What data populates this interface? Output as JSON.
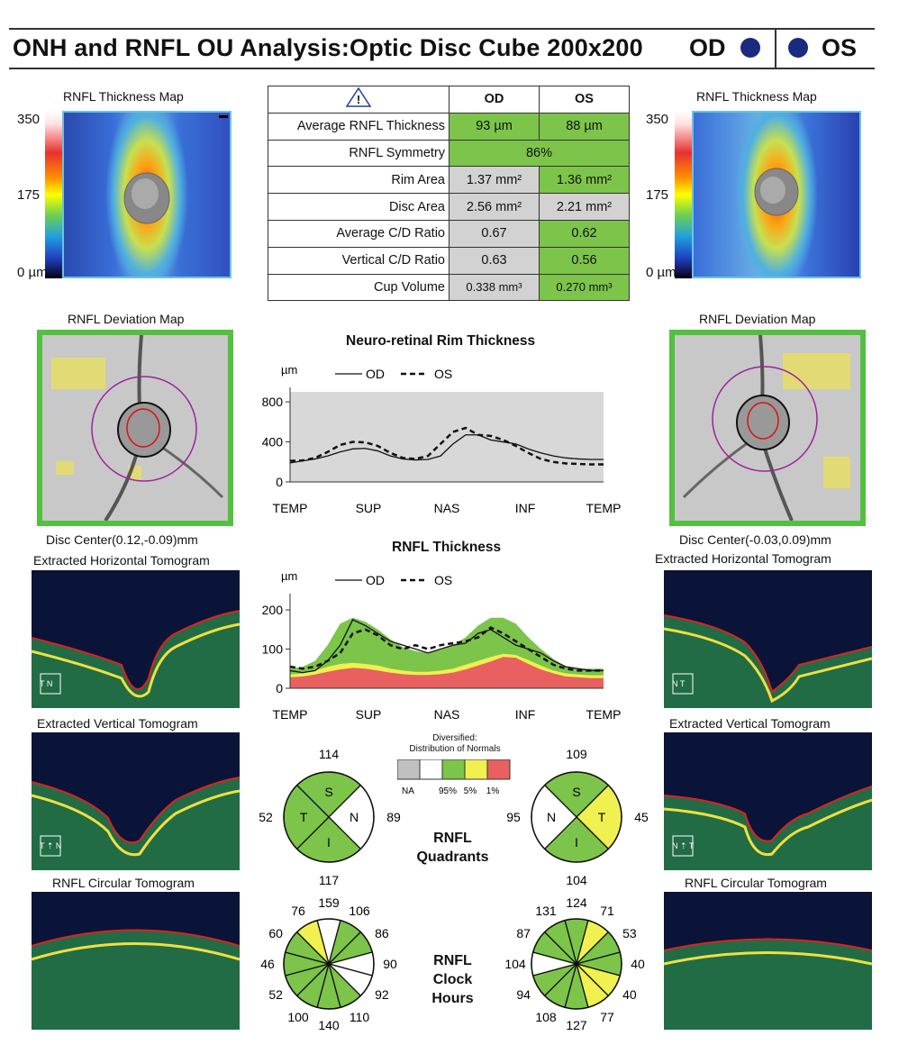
{
  "header": {
    "title": "ONH and RNFL OU Analysis:Optic Disc Cube 200x200",
    "od": "OD",
    "os": "OS"
  },
  "thickness_map": {
    "label": "RNFL Thickness Map",
    "scale_max": "350",
    "scale_mid": "175",
    "scale_min": "0 µm"
  },
  "table": {
    "warning_icon": "warning-triangle-icon",
    "col_od": "OD",
    "col_os": "OS",
    "rows": [
      {
        "label": "Average RNFL Thickness",
        "od": "93 µm",
        "os": "88 µm"
      },
      {
        "label": "RNFL Symmetry",
        "both": "86%"
      },
      {
        "label": "Rim Area",
        "od": "1.37 mm²",
        "os": "1.36 mm²"
      },
      {
        "label": "Disc Area",
        "od": "2.56 mm²",
        "os": "2.21 mm²"
      },
      {
        "label": "Average C/D Ratio",
        "od": "0.67",
        "os": "0.62"
      },
      {
        "label": "Vertical C/D Ratio",
        "od": "0.63",
        "os": "0.56"
      },
      {
        "label": "Cup Volume",
        "od": "0.338 mm³",
        "os": "0.270 mm³"
      }
    ]
  },
  "deviation": {
    "label": "RNFL Deviation Map",
    "od_center": "Disc Center(0.12,-0.09)mm",
    "os_center": "Disc Center(-0.03,0.09)mm"
  },
  "tomograms": {
    "horizontal": "Extracted Horizontal Tomogram",
    "vertical": "Extracted Vertical Tomogram",
    "circular": "RNFL Circular Tomogram",
    "od_h_tag": "T N",
    "os_h_tag": "N T"
  },
  "colors": {
    "green": "#7cc44a",
    "yellow": "#f0f050",
    "red": "#e86060",
    "gray": "#c0c0c0"
  },
  "chart_data": [
    {
      "type": "line",
      "title": "Neuro-retinal Rim Thickness",
      "ylabel": "µm",
      "ylim": [
        0,
        900
      ],
      "yticks": [
        0,
        400,
        800
      ],
      "xticks": [
        "TEMP",
        "SUP",
        "NAS",
        "INF",
        "TEMP"
      ],
      "legend": [
        "OD",
        "OS"
      ],
      "x": [
        0,
        4,
        8,
        12,
        16,
        20,
        24,
        28,
        32,
        36,
        40,
        44,
        48,
        52,
        56,
        60,
        64,
        68,
        72,
        76,
        80,
        84,
        88,
        92,
        96,
        100
      ],
      "series": [
        {
          "name": "OD",
          "values": [
            190,
            210,
            230,
            260,
            300,
            330,
            335,
            310,
            260,
            230,
            220,
            225,
            260,
            380,
            470,
            470,
            420,
            400,
            380,
            330,
            290,
            260,
            240,
            230,
            225,
            225
          ]
        },
        {
          "name": "OS",
          "values": [
            210,
            215,
            240,
            300,
            370,
            400,
            395,
            360,
            290,
            240,
            230,
            260,
            380,
            500,
            540,
            470,
            460,
            420,
            360,
            290,
            230,
            200,
            185,
            180,
            175,
            175
          ]
        }
      ]
    },
    {
      "type": "line",
      "title": "RNFL Thickness",
      "ylabel": "µm",
      "ylim": [
        0,
        230
      ],
      "yticks": [
        0,
        100,
        200
      ],
      "xticks": [
        "TEMP",
        "SUP",
        "NAS",
        "INF",
        "TEMP"
      ],
      "legend": [
        "OD",
        "OS"
      ],
      "x": [
        0,
        4,
        8,
        12,
        16,
        20,
        24,
        28,
        32,
        36,
        40,
        44,
        48,
        52,
        56,
        60,
        64,
        68,
        72,
        76,
        80,
        84,
        88,
        92,
        96,
        100
      ],
      "normal_green_upper": [
        50,
        55,
        70,
        110,
        165,
        180,
        170,
        150,
        125,
        105,
        95,
        90,
        98,
        110,
        130,
        160,
        180,
        180,
        165,
        130,
        100,
        75,
        55,
        50,
        50,
        50
      ],
      "normal_yellow_upper": [
        35,
        38,
        45,
        55,
        62,
        65,
        62,
        58,
        50,
        45,
        42,
        42,
        45,
        50,
        60,
        70,
        80,
        88,
        85,
        72,
        58,
        45,
        38,
        35,
        33,
        33
      ],
      "normal_red_upper": [
        28,
        30,
        35,
        42,
        48,
        52,
        50,
        45,
        40,
        36,
        34,
        34,
        36,
        40,
        48,
        58,
        68,
        80,
        78,
        62,
        48,
        38,
        30,
        28,
        26,
        26
      ],
      "series": [
        {
          "name": "OD",
          "values": [
            45,
            40,
            45,
            70,
            110,
            175,
            160,
            140,
            120,
            110,
            100,
            90,
            100,
            110,
            115,
            140,
            150,
            130,
            110,
            100,
            90,
            70,
            55,
            50,
            45,
            45
          ]
        },
        {
          "name": "OS",
          "values": [
            55,
            50,
            55,
            70,
            90,
            140,
            150,
            135,
            110,
            100,
            110,
            100,
            110,
            115,
            120,
            130,
            155,
            140,
            120,
            100,
            80,
            60,
            50,
            45,
            45,
            45
          ]
        }
      ]
    },
    {
      "type": "pie",
      "title": "RNFL Quadrants",
      "eye": "OD",
      "segments": [
        {
          "label": "S",
          "value": 114,
          "status": "green"
        },
        {
          "label": "N",
          "value": 89,
          "status": "white"
        },
        {
          "label": "I",
          "value": 117,
          "status": "green"
        },
        {
          "label": "T",
          "value": 52,
          "status": "green"
        }
      ]
    },
    {
      "type": "pie",
      "title": "RNFL Quadrants",
      "eye": "OS",
      "segments": [
        {
          "label": "S",
          "value": 109,
          "status": "green"
        },
        {
          "label": "T",
          "value": 45,
          "status": "yellow"
        },
        {
          "label": "I",
          "value": 104,
          "status": "green"
        },
        {
          "label": "N",
          "value": 95,
          "status": "white"
        }
      ]
    },
    {
      "type": "pie",
      "title": "RNFL Clock Hours",
      "eye": "OD",
      "clock": [
        159,
        106,
        86,
        90,
        92,
        110,
        140,
        100,
        52,
        46,
        60,
        76
      ],
      "status": [
        "white",
        "green",
        "green",
        "white",
        "white",
        "green",
        "green",
        "green",
        "green",
        "green",
        "green",
        "yellow"
      ]
    },
    {
      "type": "pie",
      "title": "RNFL Clock Hours",
      "eye": "OS",
      "clock": [
        124,
        71,
        53,
        40,
        40,
        77,
        127,
        108,
        94,
        104,
        87,
        131
      ],
      "status": [
        "green",
        "yellow",
        "green",
        "green",
        "yellow",
        "yellow",
        "green",
        "green",
        "green",
        "white",
        "green",
        "green"
      ]
    }
  ],
  "legend_box": {
    "title_line1": "Diversified:",
    "title_line2": "Distribution of Normals",
    "labels": [
      "NA",
      "95%",
      "5%",
      "1%"
    ]
  },
  "quadrants_label": [
    "RNFL",
    "Quadrants"
  ],
  "clock_label": [
    "RNFL",
    "Clock",
    "Hours"
  ]
}
